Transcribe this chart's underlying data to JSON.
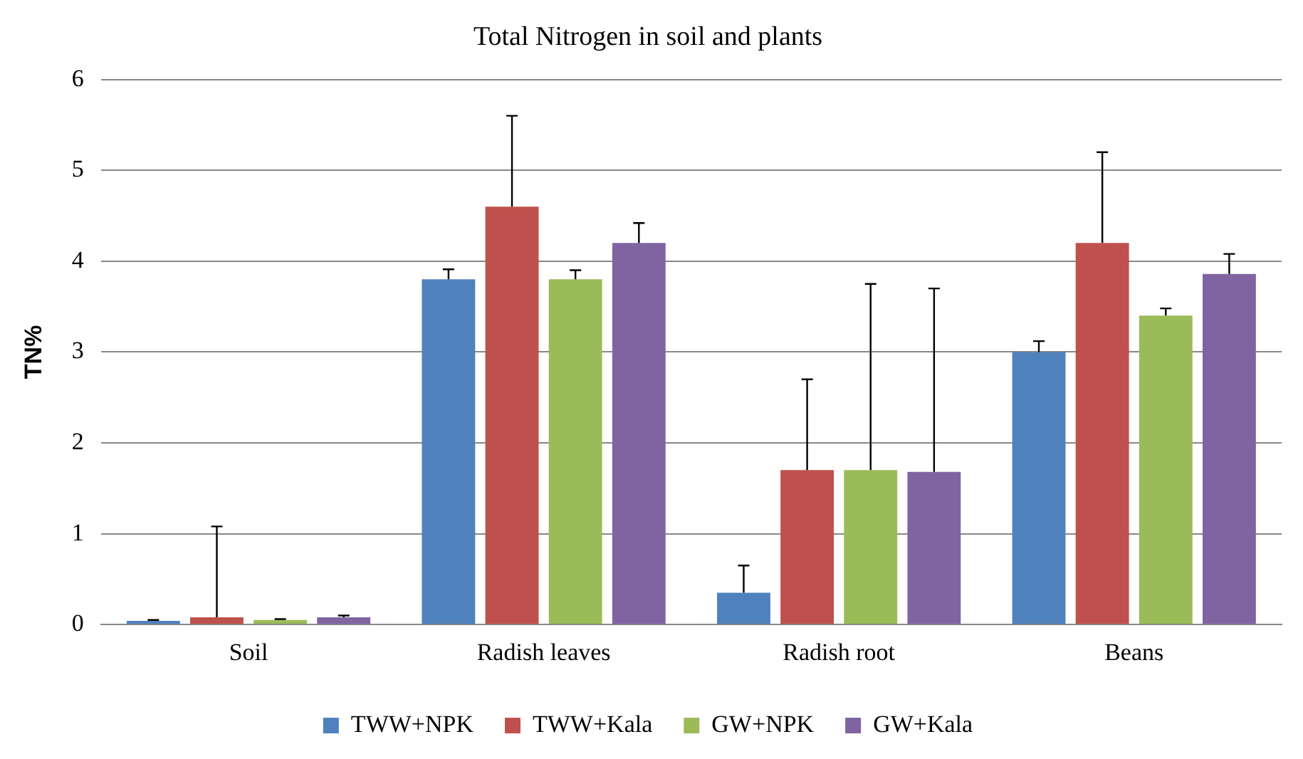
{
  "chart_data": {
    "type": "bar",
    "title": "Total Nitrogen in soil and plants",
    "ylabel": "TN%",
    "categories": [
      "Soil",
      "Radish leaves",
      "Radish root",
      "Beans"
    ],
    "series": [
      {
        "name": "TWW+NPK",
        "color": "#4f81bd",
        "values": [
          0.04,
          3.8,
          0.35,
          3.0
        ],
        "errors": [
          [
            0.04,
            0.05
          ],
          [
            3.8,
            3.91
          ],
          [
            0.35,
            0.65
          ],
          [
            3.0,
            3.12
          ]
        ]
      },
      {
        "name": "TWW+Kala",
        "color": "#c0504d",
        "values": [
          0.08,
          4.6,
          1.7,
          4.2
        ],
        "errors": [
          [
            0.08,
            1.08
          ],
          [
            4.6,
            5.6
          ],
          [
            1.7,
            2.7
          ],
          [
            4.2,
            5.2
          ]
        ]
      },
      {
        "name": "GW+NPK",
        "color": "#9bbb59",
        "values": [
          0.05,
          3.8,
          1.7,
          3.4
        ],
        "errors": [
          [
            0.05,
            0.06
          ],
          [
            3.8,
            3.9
          ],
          [
            1.7,
            3.75
          ],
          [
            3.4,
            3.48
          ]
        ]
      },
      {
        "name": "GW+Kala",
        "color": "#8064a2",
        "values": [
          0.08,
          4.2,
          1.68,
          3.86
        ],
        "errors": [
          [
            0.08,
            0.1
          ],
          [
            4.2,
            4.42
          ],
          [
            1.68,
            3.7
          ],
          [
            3.86,
            4.08
          ]
        ]
      }
    ],
    "ylim": [
      0,
      6
    ],
    "yticks": [
      0,
      1,
      2,
      3,
      4,
      5,
      6
    ],
    "grid": "y",
    "legend": "bottom"
  }
}
